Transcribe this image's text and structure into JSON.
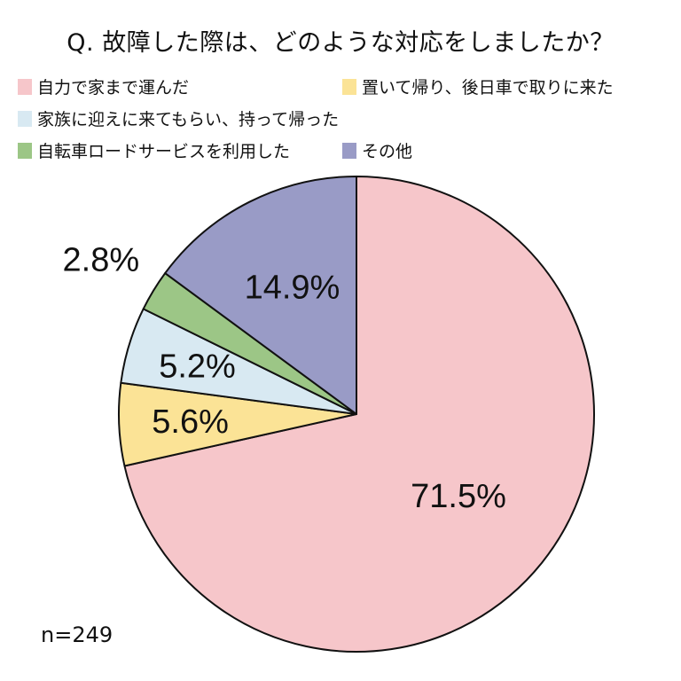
{
  "title": "Q. 故障した際は、どのような対応をしましたか？",
  "legend": [
    {
      "label": "自力で家まで運んだ",
      "color": "#F6C6CA"
    },
    {
      "label": "置いて帰り、後日車で取りに来た",
      "color": "#FBE396"
    },
    {
      "label": "家族に迎えに来てもらい、持って帰った",
      "color": "#D8E9F2"
    },
    {
      "label": "自転車ロードサービスを利用した",
      "color": "#9CC686"
    },
    {
      "label": "その他",
      "color": "#999BC6"
    }
  ],
  "sample_size": "n=249",
  "chart_data": {
    "type": "pie",
    "title": "Q. 故障した際は、どのような対応をしましたか？",
    "categories": [
      "自力で家まで運んだ",
      "置いて帰り、後日車で取りに来た",
      "家族に迎えに来てもらい、持って帰った",
      "自転車ロードサービスを利用した",
      "その他"
    ],
    "values": [
      71.5,
      5.6,
      5.2,
      2.8,
      14.9
    ],
    "value_labels": [
      "71.5%",
      "5.6%",
      "5.2%",
      "2.8%",
      "14.9%"
    ],
    "colors": [
      "#F6C6CA",
      "#FBE396",
      "#D8E9F2",
      "#9CC686",
      "#999BC6"
    ],
    "start_angle": "12 o'clock, clockwise",
    "legend_position": "top",
    "annotation": "n=249"
  }
}
